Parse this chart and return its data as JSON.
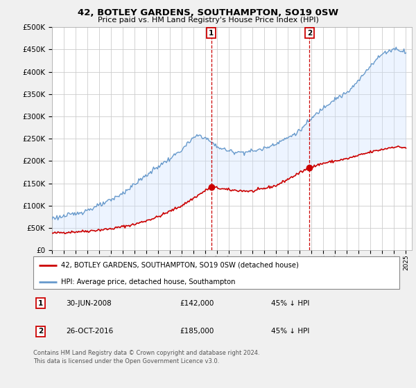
{
  "title": "42, BOTLEY GARDENS, SOUTHAMPTON, SO19 0SW",
  "subtitle": "Price paid vs. HM Land Registry's House Price Index (HPI)",
  "legend_line1": "42, BOTLEY GARDENS, SOUTHAMPTON, SO19 0SW (detached house)",
  "legend_line2": "HPI: Average price, detached house, Southampton",
  "marker1_date": "30-JUN-2008",
  "marker1_price": "£142,000",
  "marker1_info": "45% ↓ HPI",
  "marker2_date": "26-OCT-2016",
  "marker2_price": "£185,000",
  "marker2_info": "45% ↓ HPI",
  "footer": "Contains HM Land Registry data © Crown copyright and database right 2024.\nThis data is licensed under the Open Government Licence v3.0.",
  "ylim": [
    0,
    500000
  ],
  "yticks": [
    0,
    50000,
    100000,
    150000,
    200000,
    250000,
    300000,
    350000,
    400000,
    450000,
    500000
  ],
  "line_color_red": "#cc0000",
  "line_color_blue": "#6699cc",
  "vline_color": "#cc0000",
  "marker_box_color": "#cc0000",
  "background_color": "#f0f0f0",
  "plot_bg_color": "#ffffff",
  "grid_color": "#cccccc",
  "shade_color": "#cce0ff",
  "vline1_x": 2008.5,
  "vline2_x": 2016.83,
  "vline1_y": 142000,
  "vline2_y": 185000,
  "xmin": 1995,
  "xmax": 2025.5
}
